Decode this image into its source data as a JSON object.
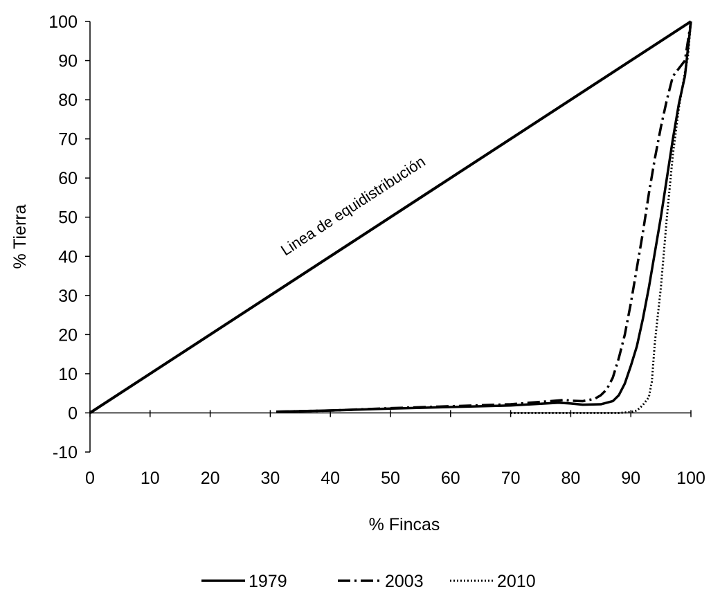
{
  "chart_data": {
    "type": "line",
    "title": "",
    "xlabel": "% Fincas",
    "ylabel": "% Tierra",
    "xlim": [
      0,
      100
    ],
    "ylim": [
      -10,
      100
    ],
    "x_ticks": [
      0,
      10,
      20,
      30,
      40,
      50,
      60,
      70,
      80,
      90,
      100
    ],
    "y_ticks": [
      -10,
      0,
      10,
      20,
      30,
      40,
      50,
      60,
      70,
      80,
      90,
      100
    ],
    "grid": false,
    "legend_position": "bottom",
    "annotation": {
      "text": "Linea de equidistribución",
      "along_series": "equidistribution"
    },
    "series": [
      {
        "name": "1979",
        "style": "solid",
        "color": "#000000",
        "points": [
          [
            31,
            0.3
          ],
          [
            40,
            0.6
          ],
          [
            50,
            1.1
          ],
          [
            60,
            1.5
          ],
          [
            70,
            1.9
          ],
          [
            78,
            2.6
          ],
          [
            80,
            2.4
          ],
          [
            82,
            2.1
          ],
          [
            85,
            2.2
          ],
          [
            87,
            3.0
          ],
          [
            88,
            4.5
          ],
          [
            89,
            7.5
          ],
          [
            90,
            12
          ],
          [
            91,
            17
          ],
          [
            92,
            24
          ],
          [
            93,
            32
          ],
          [
            94,
            41
          ],
          [
            95,
            50
          ],
          [
            96,
            60
          ],
          [
            97,
            70
          ],
          [
            98,
            79
          ],
          [
            99,
            86
          ],
          [
            100,
            100
          ]
        ]
      },
      {
        "name": "2003",
        "style": "dash-dot",
        "color": "#000000",
        "points": [
          [
            31,
            0.3
          ],
          [
            40,
            0.6
          ],
          [
            50,
            1.2
          ],
          [
            60,
            1.7
          ],
          [
            70,
            2.2
          ],
          [
            79,
            3.3
          ],
          [
            80,
            3.1
          ],
          [
            82,
            3.0
          ],
          [
            84,
            3.6
          ],
          [
            85,
            4.5
          ],
          [
            86,
            6.0
          ],
          [
            87,
            9
          ],
          [
            88,
            14
          ],
          [
            89,
            20
          ],
          [
            90,
            28
          ],
          [
            91,
            37
          ],
          [
            92,
            46
          ],
          [
            93,
            56
          ],
          [
            94,
            65
          ],
          [
            95,
            73
          ],
          [
            96,
            80
          ],
          [
            97,
            86
          ],
          [
            98,
            88
          ],
          [
            99,
            90
          ],
          [
            100,
            100
          ]
        ]
      },
      {
        "name": "2010",
        "style": "dotted",
        "color": "#000000",
        "points": [
          [
            70,
            0
          ],
          [
            80,
            0
          ],
          [
            88,
            0
          ],
          [
            90,
            0.2
          ],
          [
            91,
            0.6
          ],
          [
            92,
            2
          ],
          [
            93,
            4
          ],
          [
            93.5,
            8
          ],
          [
            94,
            18
          ],
          [
            95,
            32
          ],
          [
            96,
            50
          ],
          [
            97,
            66
          ],
          [
            98,
            78
          ],
          [
            99,
            87
          ],
          [
            99.5,
            91
          ],
          [
            100,
            100
          ]
        ]
      },
      {
        "name": "equidistribution",
        "style": "solid-bold",
        "color": "#000000",
        "points": [
          [
            0,
            0
          ],
          [
            100,
            100
          ]
        ]
      }
    ]
  }
}
